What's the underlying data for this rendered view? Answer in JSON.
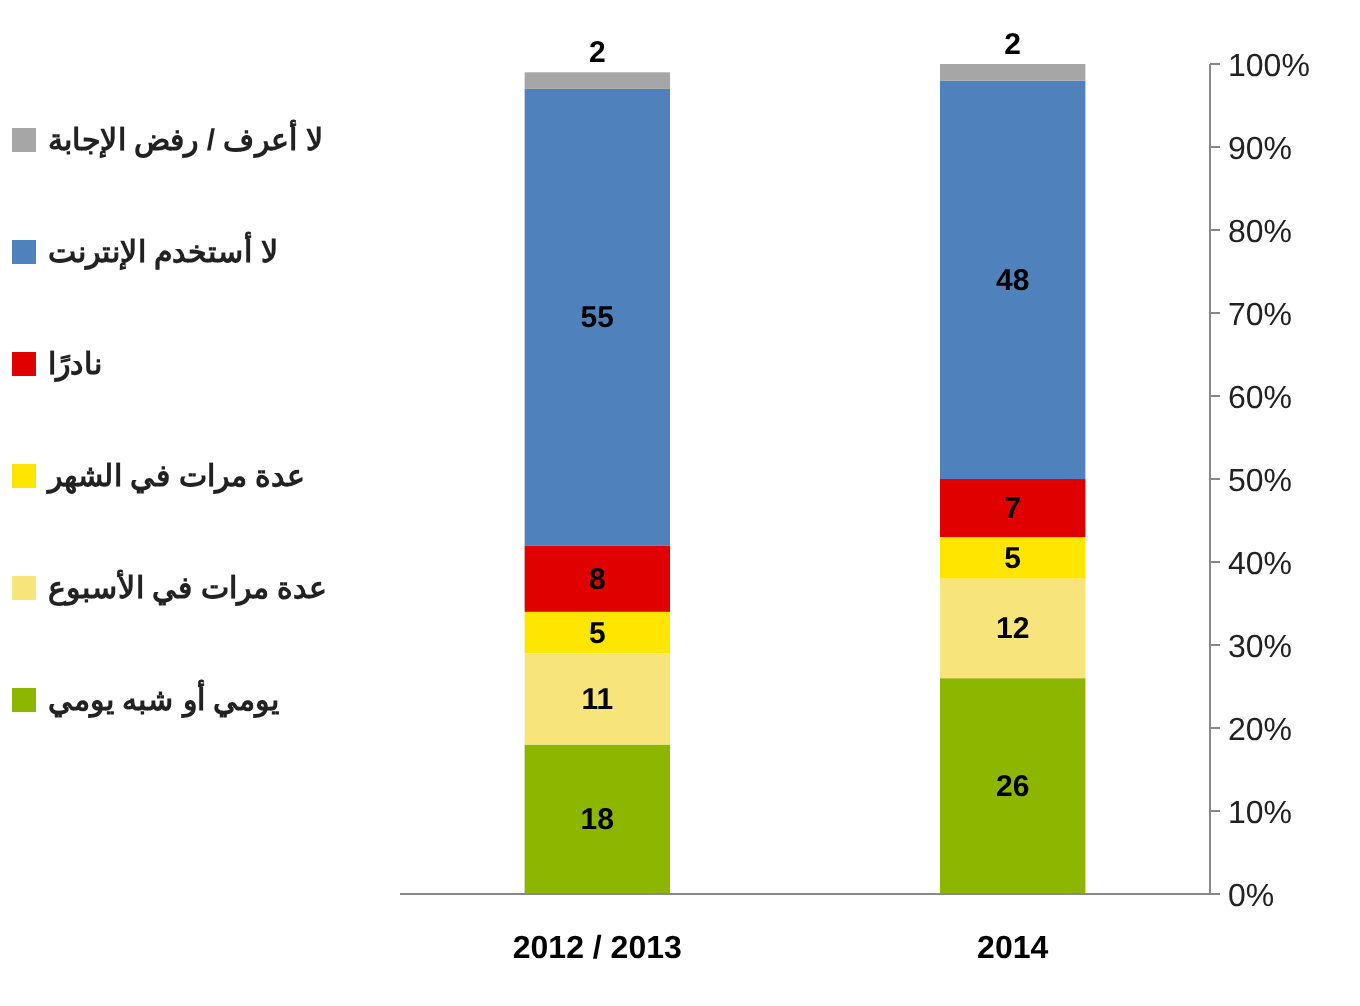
{
  "chart_data": {
    "type": "bar",
    "stacked": true,
    "categories": [
      "2012 / 2013",
      "2014"
    ],
    "series": [
      {
        "name": "يومي أو شبه يومي",
        "color": "#8db600",
        "values": [
          18,
          26
        ]
      },
      {
        "name": "عدة مرات في الأسبوع",
        "color": "#f7e47a",
        "values": [
          11,
          12
        ]
      },
      {
        "name": "عدة مرات في الشهر",
        "color": "#ffe600",
        "values": [
          5,
          5
        ]
      },
      {
        "name": "نادرًا",
        "color": "#e00000",
        "values": [
          8,
          7
        ]
      },
      {
        "name": "لا أستخدم الإنترنت",
        "color": "#4f81bd",
        "values": [
          55,
          48
        ]
      },
      {
        "name": "لا أعرف / رفض الإجابة",
        "color": "#a6a6a6",
        "values": [
          2,
          2
        ]
      }
    ],
    "ylim": [
      0,
      100
    ],
    "yticks": [
      {
        "value": 0,
        "label": "0%"
      },
      {
        "value": 10,
        "label": "10%"
      },
      {
        "value": 20,
        "label": "20%"
      },
      {
        "value": 30,
        "label": "30%"
      },
      {
        "value": 40,
        "label": "40%"
      },
      {
        "value": 50,
        "label": "50%"
      },
      {
        "value": 60,
        "label": "60%"
      },
      {
        "value": 70,
        "label": "70%"
      },
      {
        "value": 80,
        "label": "80%"
      },
      {
        "value": 90,
        "label": "90%"
      },
      {
        "value": 100,
        "label": "100%"
      }
    ],
    "data_labels": true,
    "legend": "left",
    "grid": false
  }
}
